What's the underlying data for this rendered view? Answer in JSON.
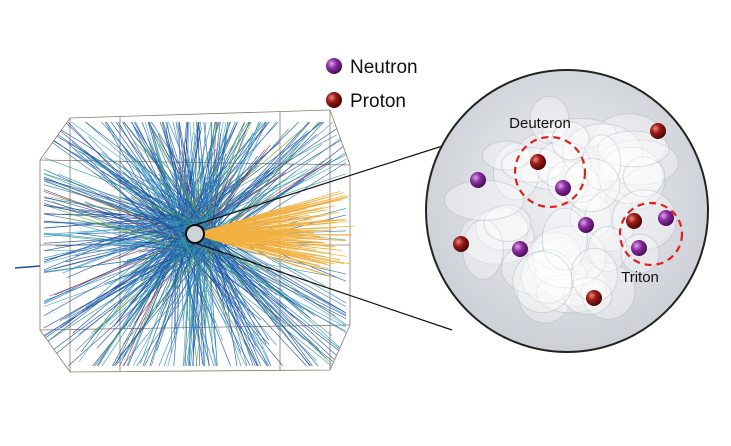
{
  "legend": {
    "items": [
      {
        "label": "Neutron",
        "color": "#7a1f8c"
      },
      {
        "label": "Proton",
        "color": "#8b1414"
      }
    ]
  },
  "zoom_view": {
    "deuteron_label": "Deuteron",
    "triton_label": "Triton",
    "cluster_ring_color": "#e0201e"
  },
  "colors": {
    "tracks": [
      "#1f4fa0",
      "#2a7fc0",
      "#3aa0c8",
      "#2f9a8a",
      "#6aaa3a",
      "#c0302a",
      "#7a3aa0"
    ],
    "highlighted_tracks": "#f3b040"
  }
}
